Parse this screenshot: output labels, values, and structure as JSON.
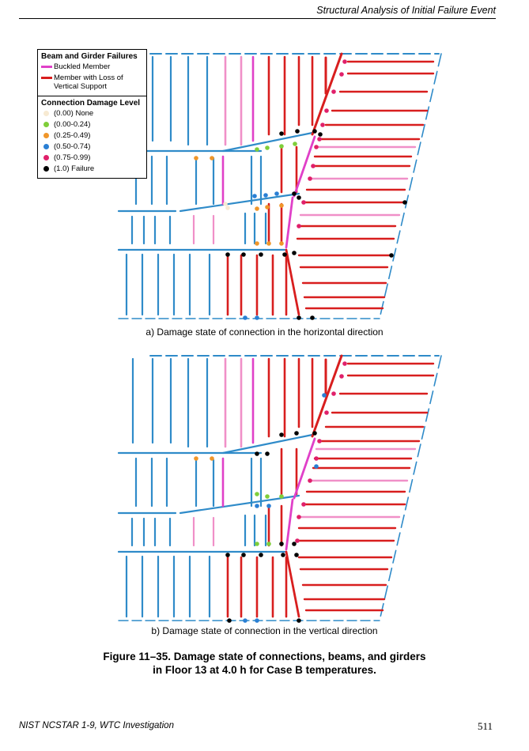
{
  "header": {
    "running_title": "Structural Analysis of Initial Failure Event"
  },
  "legend": {
    "members_title": "Beam and Girder Failures",
    "members": [
      {
        "label": "Buckled Member",
        "color": "#e040c8"
      },
      {
        "label": "Member with Loss of Vertical Support",
        "color": "#d81e1e"
      }
    ],
    "connections_title": "Connection Damage Level",
    "levels": [
      {
        "label": "(0.00) None",
        "color": "#f7ead2"
      },
      {
        "label": "(0.00-0.24)",
        "color": "#7fce3a"
      },
      {
        "label": "(0.25-0.49)",
        "color": "#f0962a"
      },
      {
        "label": "(0.50-0.74)",
        "color": "#2a7fd4"
      },
      {
        "label": "(0.75-0.99)",
        "color": "#e0206a"
      },
      {
        "label": "(1.0) Failure",
        "color": "#000000"
      }
    ]
  },
  "member_colors": {
    "intact": "#2f8bc9",
    "buckled": "#e040c8",
    "pink_light": "#f090c8",
    "lost_support": "#d81e1e"
  },
  "panels": [
    {
      "caption": "a) Damage state of connection in the horizontal direction"
    },
    {
      "caption": "b) Damage state of connection in the vertical direction"
    }
  ],
  "figure": {
    "title_line1": "Figure 11–35. Damage state of connections, beams, and girders",
    "title_line2": "in Floor 13 at 4.0 h for Case B temperatures."
  },
  "footer": {
    "left": "NIST NCSTAR 1-9, WTC Investigation",
    "page_number": "511"
  }
}
